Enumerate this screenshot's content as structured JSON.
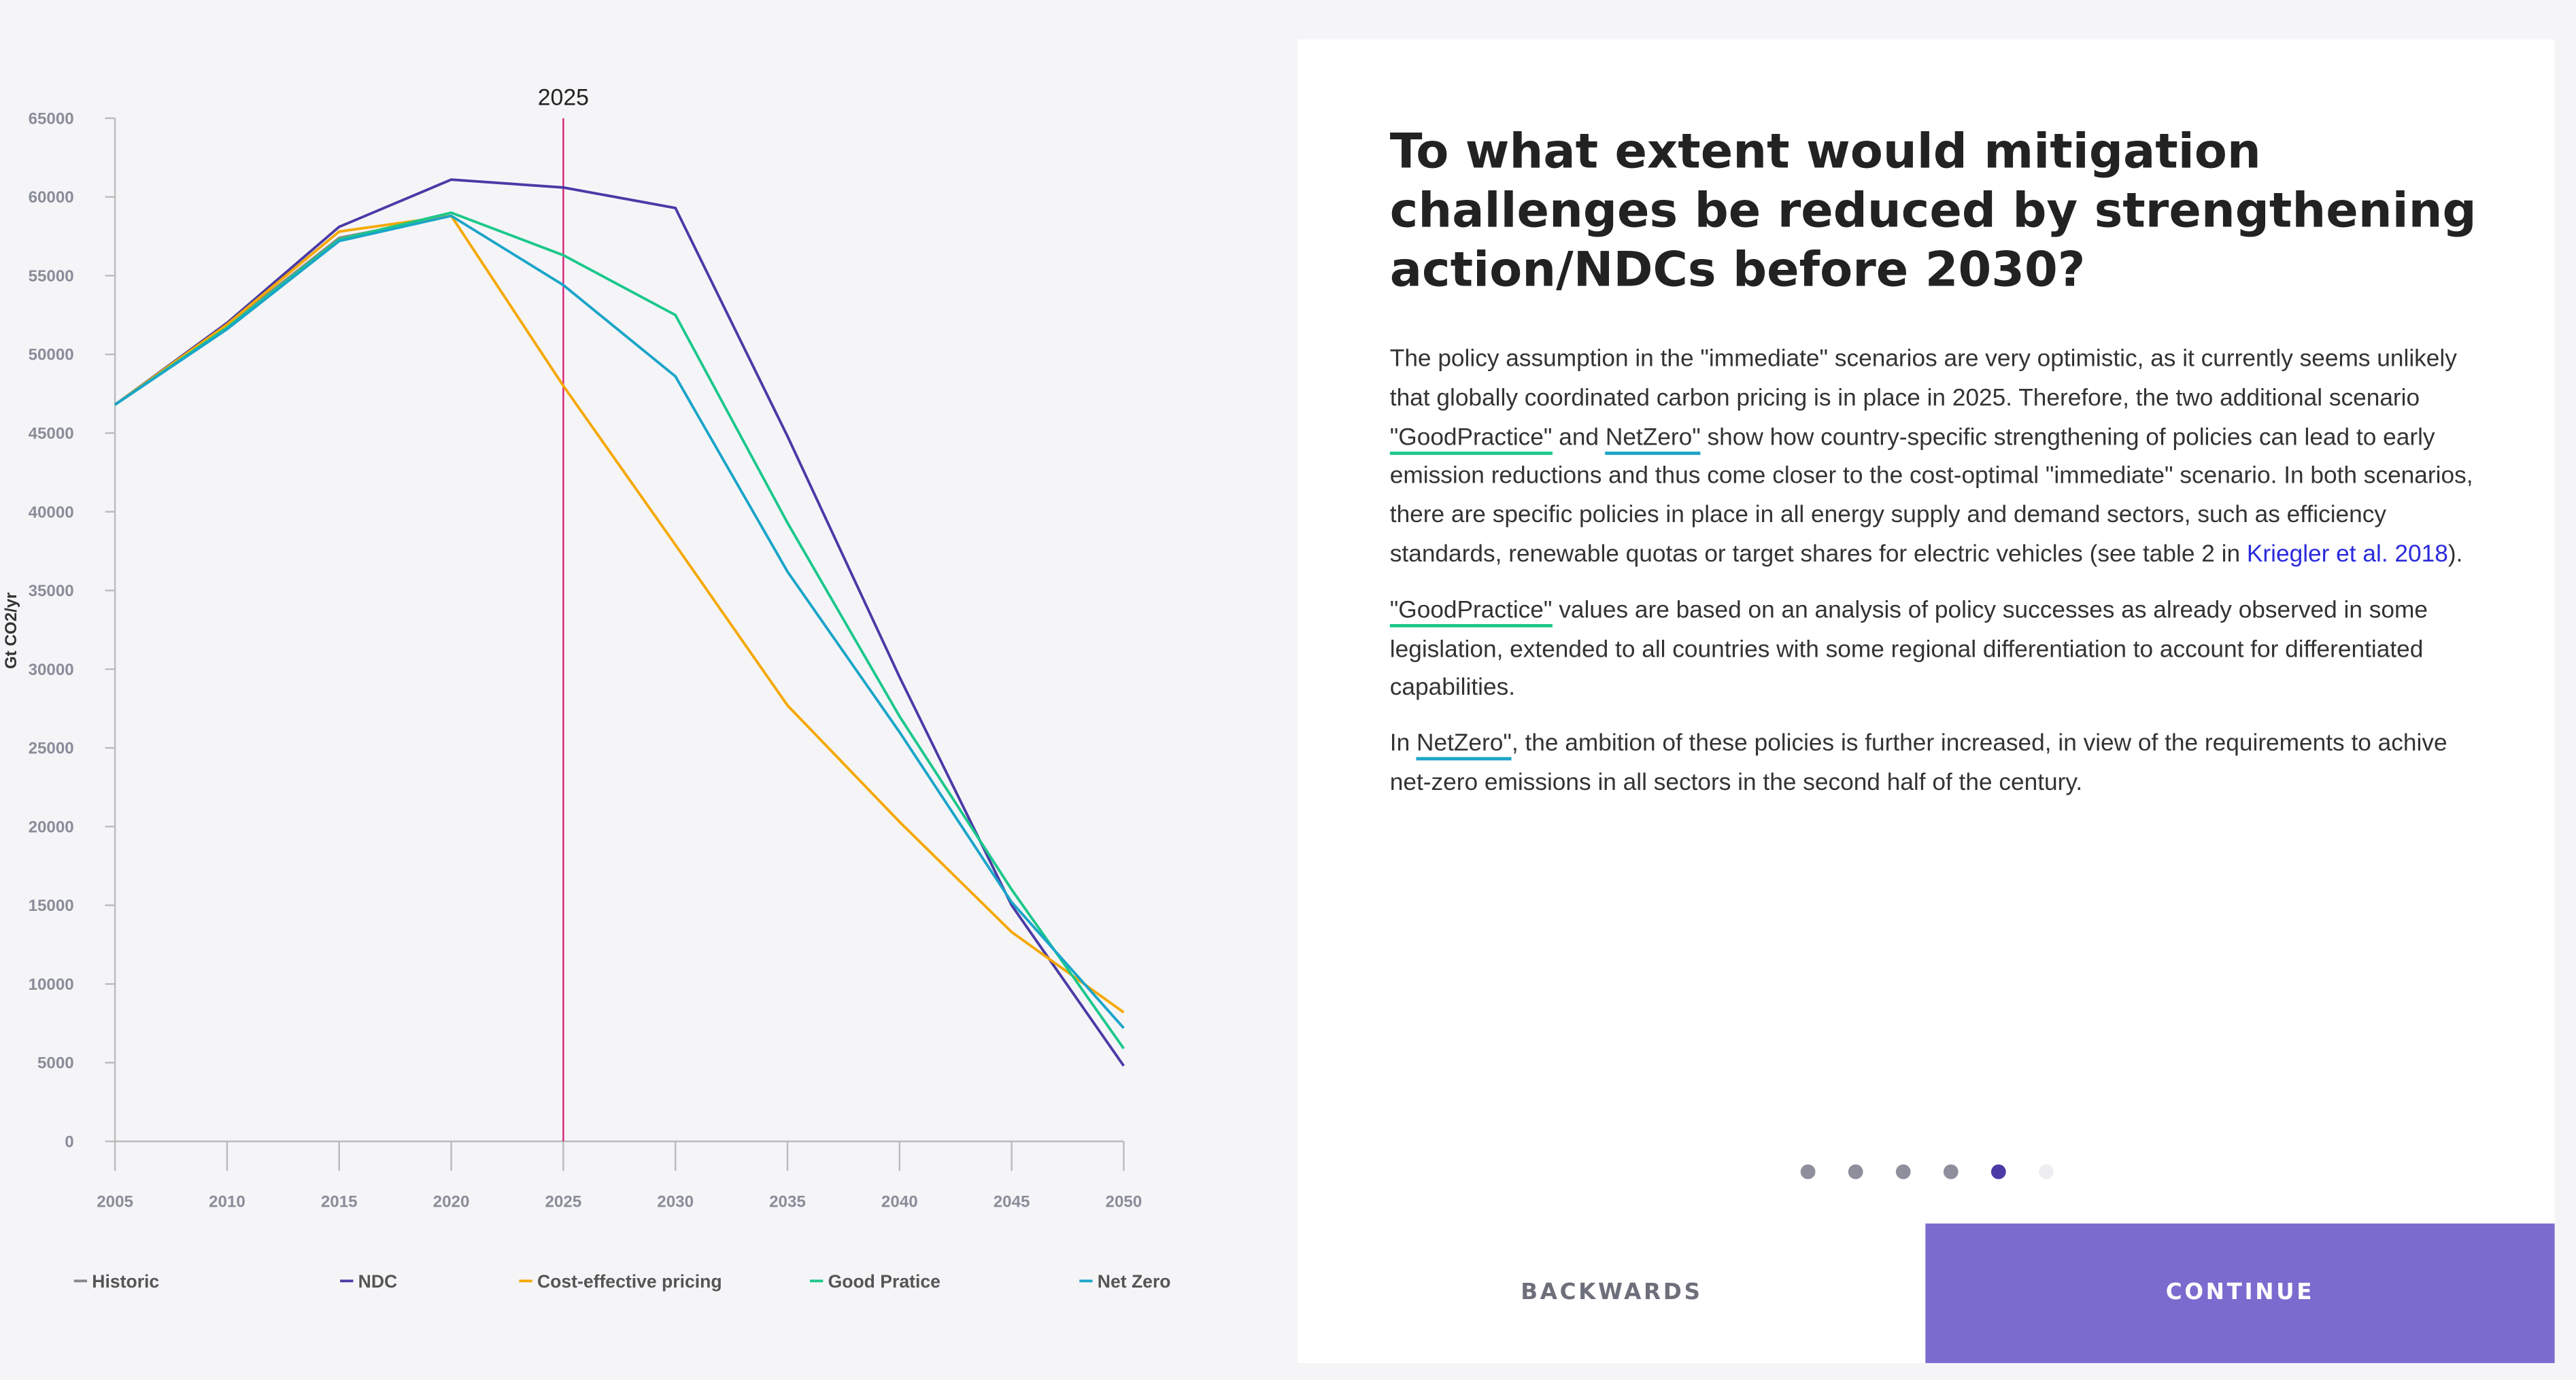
{
  "chart_data": {
    "type": "line",
    "ylabel": "Gt CO2/yr",
    "x": [
      2005,
      2010,
      2015,
      2020,
      2025,
      2030,
      2035,
      2040,
      2045,
      2050
    ],
    "xlim": [
      2005,
      2050
    ],
    "xticks": [
      2005,
      2010,
      2015,
      2020,
      2025,
      2030,
      2035,
      2040,
      2045,
      2050
    ],
    "ylim": [
      0,
      65000
    ],
    "yticks": [
      0,
      5000,
      10000,
      15000,
      20000,
      25000,
      30000,
      35000,
      40000,
      45000,
      50000,
      55000,
      60000,
      65000
    ],
    "marker": 2025,
    "marker_color": "#d6257a",
    "series": [
      {
        "name": "Historic",
        "color": "#888888",
        "values": [
          46800,
          51800,
          57400,
          58800,
          null,
          null,
          null,
          null,
          null,
          null
        ]
      },
      {
        "name": "NDC",
        "color": "#4b3aa6",
        "values": [
          46800,
          52000,
          58100,
          61100,
          60600,
          59300,
          44800,
          29500,
          15000,
          4800
        ]
      },
      {
        "name": "Cost-effective pricing",
        "color": "#f5a800",
        "values": [
          46800,
          51900,
          57800,
          58800,
          48000,
          37900,
          27700,
          20300,
          13300,
          8200
        ]
      },
      {
        "name": "Good Pratice",
        "color": "#1cc88a",
        "values": [
          46800,
          51700,
          57300,
          59000,
          56300,
          52500,
          39300,
          27000,
          16000,
          5900
        ]
      },
      {
        "name": "Net Zero",
        "color": "#1aa5c8",
        "values": [
          46800,
          51600,
          57200,
          58800,
          54400,
          48600,
          36200,
          26000,
          15200,
          7200
        ]
      }
    ]
  },
  "panel": {
    "title": "To what extent would mitigation challenges be reduced by strengthening action/NDCs before 2030?",
    "paragraphs": [
      [
        "The policy assumption in the \"immediate\" scenarios are very optimistic, as it currently seems unlikely that globally coordinated carbon pricing is in place in 2025. Therefore, the two additional scenario ",
        "\"GoodPractice\"",
        " and ",
        "NetZero\"",
        " show how country-specific strengthening of policies can lead to early emission reductions and thus come closer to the cost-optimal \"immediate\" scenario. In both scenarios, there are specific policies in place in all energy supply and demand sectors, such as efficiency standards, renewable quotas or target shares for electric vehicles (see table 2 in ",
        "Kriegler et al. 2018",
        ")."
      ],
      [
        "\"GoodPractice\"",
        " values are based on an analysis of policy successes as already observed in some legislation, extended to all countries with some regional differentiation to account for differentiated capabilities."
      ],
      [
        "In ",
        "NetZero\"",
        ", the ambition of these policies is further increased, in view of the requirements to achive net-zero emissions in all sectors in the second half of the century."
      ]
    ],
    "backwards": "BACKWARDS",
    "continue": "CONTINUE"
  }
}
